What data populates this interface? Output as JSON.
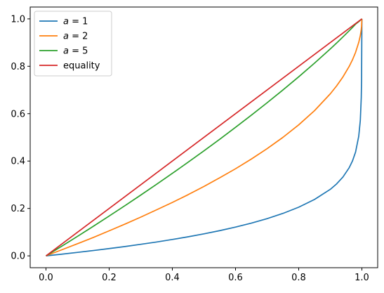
{
  "chart_data": {
    "type": "line",
    "title": "",
    "xlabel": "",
    "ylabel": "",
    "xlim": [
      -0.05,
      1.05
    ],
    "ylim": [
      -0.05,
      1.05
    ],
    "grid": false,
    "legend_position": "top-left",
    "x_ticks": [
      0.0,
      0.2,
      0.4,
      0.6,
      0.8,
      1.0
    ],
    "x_tick_labels": [
      "0.0",
      "0.2",
      "0.4",
      "0.6",
      "0.8",
      "1.0"
    ],
    "y_ticks": [
      0.0,
      0.2,
      0.4,
      0.6,
      0.8,
      1.0
    ],
    "y_tick_labels": [
      "0.0",
      "0.2",
      "0.4",
      "0.6",
      "0.8",
      "1.0"
    ],
    "series": [
      {
        "name": "a = 1",
        "legend_var": "a",
        "legend_rest": " = 1",
        "color": "#1f77b4",
        "x": [
          0,
          0.05,
          0.1,
          0.15,
          0.2,
          0.25,
          0.3,
          0.35,
          0.4,
          0.45,
          0.5,
          0.55,
          0.6,
          0.65,
          0.7,
          0.75,
          0.8,
          0.85,
          0.9,
          0.92,
          0.94,
          0.96,
          0.97,
          0.98,
          0.99,
          0.995,
          0.998,
          0.999,
          1.0
        ],
        "y": [
          0,
          0.0071,
          0.0146,
          0.0225,
          0.0307,
          0.0394,
          0.0487,
          0.0585,
          0.0691,
          0.0805,
          0.0929,
          0.1064,
          0.1213,
          0.1381,
          0.1571,
          0.1791,
          0.2054,
          0.2379,
          0.2807,
          0.3037,
          0.3327,
          0.3724,
          0.3998,
          0.4379,
          0.5047,
          0.5712,
          0.6677,
          0.7409,
          1.0
        ]
      },
      {
        "name": "a = 2",
        "legend_var": "a",
        "legend_rest": " = 2",
        "color": "#ff7f0e",
        "x": [
          0,
          0.05,
          0.1,
          0.15,
          0.2,
          0.25,
          0.3,
          0.35,
          0.4,
          0.45,
          0.5,
          0.55,
          0.6,
          0.65,
          0.7,
          0.75,
          0.8,
          0.85,
          0.9,
          0.92,
          0.94,
          0.96,
          0.97,
          0.98,
          0.99,
          0.995,
          0.998,
          0.999,
          1.0
        ],
        "y": [
          0,
          0.0256,
          0.0513,
          0.0777,
          0.1056,
          0.134,
          0.1635,
          0.1942,
          0.2254,
          0.2582,
          0.2929,
          0.3296,
          0.3675,
          0.4084,
          0.4523,
          0.5,
          0.5528,
          0.6127,
          0.6838,
          0.7172,
          0.7551,
          0.8,
          0.8268,
          0.8586,
          0.9005,
          0.9293,
          0.9553,
          0.9684,
          1.0
        ]
      },
      {
        "name": "a = 5",
        "legend_var": "a",
        "legend_rest": " = 5",
        "color": "#2ca02c",
        "x": [
          0,
          0.05,
          0.1,
          0.15,
          0.2,
          0.25,
          0.3,
          0.35,
          0.4,
          0.45,
          0.5,
          0.55,
          0.6,
          0.65,
          0.7,
          0.75,
          0.8,
          0.85,
          0.9,
          0.92,
          0.94,
          0.96,
          0.97,
          0.98,
          0.99,
          0.995,
          0.998,
          0.999,
          1.0
        ],
        "y": [
          0,
          0.0408,
          0.0825,
          0.1249,
          0.168,
          0.2119,
          0.2565,
          0.3019,
          0.3481,
          0.3952,
          0.4432,
          0.4922,
          0.5423,
          0.5935,
          0.646,
          0.7,
          0.7556,
          0.8131,
          0.8732,
          0.8982,
          0.9238,
          0.9501,
          0.9637,
          0.9777,
          0.9883,
          0.9943,
          0.9977,
          0.9989,
          1.0
        ]
      },
      {
        "name": "equality",
        "legend_label": "equality",
        "color": "#d62728",
        "x": [
          0,
          1
        ],
        "y": [
          0,
          1
        ]
      }
    ]
  }
}
